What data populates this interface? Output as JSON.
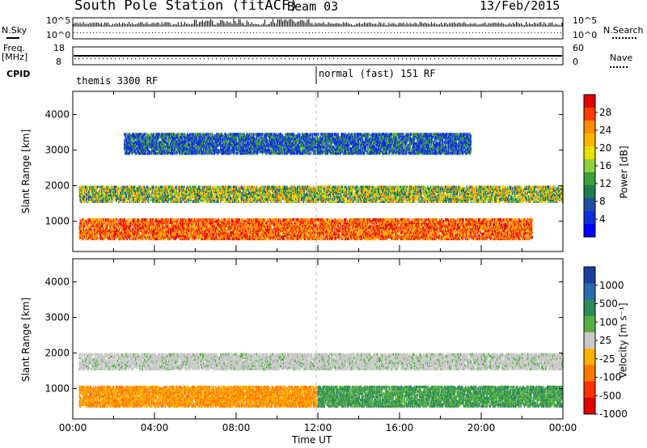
{
  "header": {
    "title": "South Pole Station (fitACF)",
    "beam": "Beam 03",
    "date": "13/Feb/2015"
  },
  "side_labels": {
    "nsky": "N.Sky",
    "nsearch": "N.Search",
    "freq": "Freq.",
    "mhz": "[MHz]",
    "nave": "Nave",
    "cpid": "CPID"
  },
  "nsky_ticks": {
    "left_top": "10^5",
    "left_bottom": "10^0",
    "right_top": "10^5",
    "right_bottom": "10^0"
  },
  "freq_ticks": {
    "top": "18",
    "bottom": "8"
  },
  "nave_ticks": {
    "top": "60",
    "bottom": "0"
  },
  "cpid_segments": [
    {
      "label": "themis 3300 RF",
      "start_hour": 0,
      "end_hour": 12
    },
    {
      "label": "normal (fast) 151 RF",
      "start_hour": 12,
      "end_hour": 24
    }
  ],
  "chart_data": [
    {
      "type": "heatmap",
      "panel": "power",
      "ylabel": "Slant Range [km]",
      "xlabel": "",
      "ylim": [
        150,
        4650
      ],
      "xlim": [
        0,
        24
      ],
      "y_ticks": [
        "1000",
        "2000",
        "3000",
        "4000"
      ],
      "y_tick_values": [
        1000,
        2000,
        3000,
        4000
      ],
      "colorbar_label": "Power [dB]",
      "colorbar_ticks": [
        "28",
        "24",
        "20",
        "16",
        "12",
        "8",
        "4"
      ],
      "colorbar_colors": [
        "#e00000",
        "#ff3a00",
        "#ff8c00",
        "#ffb400",
        "#e6e000",
        "#90d040",
        "#3aa03a",
        "#1e7e4e",
        "#1e4ea0",
        "#1030e0",
        "#0000ff"
      ],
      "bands": [
        {
          "range_km": [
            1550,
            2000
          ],
          "hours": [
            0.3,
            24
          ],
          "description_color": "green-orange"
        },
        {
          "range_km": [
            500,
            1100
          ],
          "hours": [
            0.3,
            22.5
          ],
          "description_color": "orange-red"
        },
        {
          "range_km": [
            2900,
            3500
          ],
          "hours": [
            2.5,
            19.5
          ],
          "description_color": "blue-green"
        }
      ]
    },
    {
      "type": "heatmap",
      "panel": "velocity",
      "ylabel": "Slant Range [km]",
      "xlabel": "Time UT",
      "ylim": [
        150,
        4650
      ],
      "xlim": [
        0,
        24
      ],
      "y_ticks": [
        "1000",
        "2000",
        "3000",
        "4000"
      ],
      "y_tick_values": [
        1000,
        2000,
        3000,
        4000
      ],
      "x_ticks": [
        "00:00",
        "04:00",
        "08:00",
        "12:00",
        "16:00",
        "20:00",
        "00:00"
      ],
      "x_tick_hours": [
        0,
        4,
        8,
        12,
        16,
        20,
        24
      ],
      "colorbar_label": "Velocity [m s⁻¹]",
      "colorbar_ticks": [
        "1000",
        "500",
        "100",
        "25",
        "-25",
        "-100",
        "-500",
        "-1000"
      ],
      "colorbar_colors": [
        "#1e3ca0",
        "#2a6ab0",
        "#2e8a5a",
        "#55b040",
        "#c8c8c8",
        "#ffb000",
        "#ff7800",
        "#ff3000",
        "#e00000"
      ],
      "bands": [
        {
          "range_km": [
            1550,
            2000
          ],
          "hours": [
            0.3,
            24
          ],
          "description_color": "grey"
        },
        {
          "range_km": [
            500,
            1100
          ],
          "hours": [
            0.3,
            12
          ],
          "description_color": "orange"
        },
        {
          "range_km": [
            500,
            1100
          ],
          "hours": [
            12,
            24
          ],
          "description_color": "green"
        }
      ]
    }
  ]
}
